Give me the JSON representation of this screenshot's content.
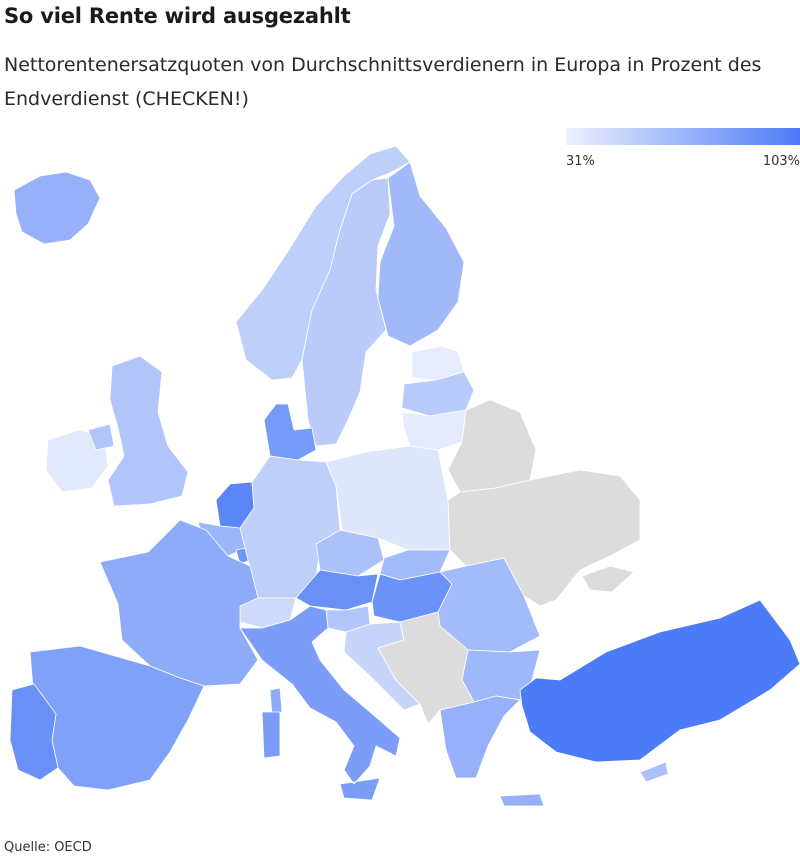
{
  "title": "So viel Rente wird ausgezahlt",
  "subtitle": "Nettorentenersatzquoten von Durchschnittsverdienern in Europa in Prozent des Endverdienst (CHECKEN!)",
  "legend": {
    "min_label": "31%",
    "max_label": "103%",
    "min_value": 31,
    "max_value": 103,
    "color_low": "#eef1fc",
    "color_high": "#4b7bf6",
    "no_data_color": "#dcdcdc"
  },
  "source": "Quelle: OECD",
  "map_data": {
    "type": "choropleth",
    "unit": "%",
    "regions": [
      {
        "id": "iceland",
        "value": 70
      },
      {
        "id": "norway",
        "value": 52
      },
      {
        "id": "sweden",
        "value": 54
      },
      {
        "id": "finland",
        "value": 65
      },
      {
        "id": "estonia",
        "value": 34
      },
      {
        "id": "latvia",
        "value": 55
      },
      {
        "id": "lithuania",
        "value": 35
      },
      {
        "id": "denmark",
        "value": 84
      },
      {
        "id": "ireland",
        "value": 36
      },
      {
        "id": "united-kingdom",
        "value": 58
      },
      {
        "id": "netherlands",
        "value": 96
      },
      {
        "id": "belgium",
        "value": 67
      },
      {
        "id": "luxembourg",
        "value": 88
      },
      {
        "id": "germany",
        "value": 52
      },
      {
        "id": "poland",
        "value": 38
      },
      {
        "id": "czechia",
        "value": 60
      },
      {
        "id": "slovakia",
        "value": 64
      },
      {
        "id": "austria",
        "value": 90
      },
      {
        "id": "switzerland",
        "value": 45
      },
      {
        "id": "france",
        "value": 74
      },
      {
        "id": "hungary",
        "value": 89
      },
      {
        "id": "romania",
        "value": 64
      },
      {
        "id": "slovenia",
        "value": 57
      },
      {
        "id": "croatia",
        "value": 48
      },
      {
        "id": "bulgaria",
        "value": 66
      },
      {
        "id": "italy",
        "value": 82
      },
      {
        "id": "spain",
        "value": 80
      },
      {
        "id": "portugal",
        "value": 90
      },
      {
        "id": "greece",
        "value": 70
      },
      {
        "id": "turkey",
        "value": 103
      },
      {
        "id": "cyprus",
        "value": 60
      },
      {
        "id": "belarus",
        "value": null
      },
      {
        "id": "ukraine",
        "value": null
      },
      {
        "id": "western-balkans",
        "value": null
      }
    ]
  }
}
